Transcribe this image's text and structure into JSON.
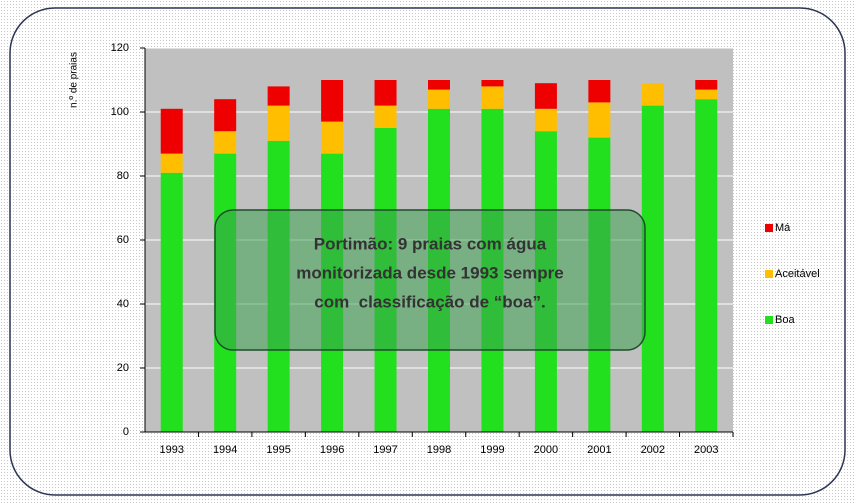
{
  "chart_data": {
    "type": "stacked_bar",
    "y_label": "n.º de praias",
    "categories": [
      "1993",
      "1994",
      "1995",
      "1996",
      "1997",
      "1998",
      "1999",
      "2000",
      "2001",
      "2002",
      "2003"
    ],
    "series": [
      {
        "name": "Boa",
        "color": "#22e01e",
        "values": [
          81,
          87,
          91,
          87,
          95,
          101,
          101,
          94,
          92,
          102,
          104
        ]
      },
      {
        "name": "Aceitável",
        "color": "#ffbf00",
        "values": [
          6,
          7,
          11,
          10,
          7,
          6,
          7,
          7,
          11,
          7,
          3
        ]
      },
      {
        "name": "Má",
        "color": "#ee0000",
        "values": [
          14,
          10,
          6,
          13,
          8,
          3,
          2,
          8,
          7,
          0,
          3
        ]
      }
    ],
    "ylim": [
      0,
      120
    ],
    "yticks": [
      0,
      20,
      40,
      60,
      80,
      100,
      120
    ],
    "grid": true,
    "annotation": [
      "Portimão: 9 praias com água",
      "monitorizada desde 1993 sempre",
      "com  classificação de “boa”."
    ]
  }
}
